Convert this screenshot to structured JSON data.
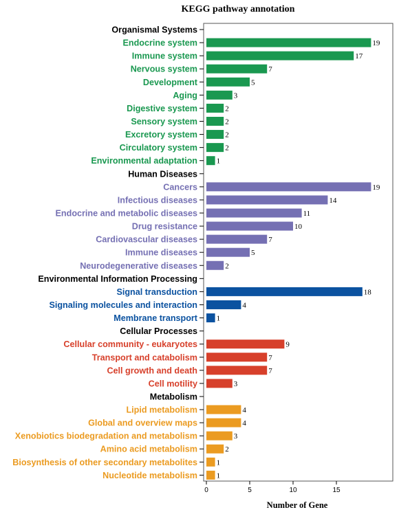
{
  "chart_data": {
    "type": "bar",
    "orientation": "horizontal",
    "title": "KEGG pathway annotation",
    "xlabel": "Number of Gene",
    "ylabel": "",
    "xlim": [
      0,
      21
    ],
    "xticks": [
      0,
      5,
      10,
      15
    ],
    "grid": false,
    "legend": "none",
    "groups": [
      {
        "name": "Organismal Systems",
        "color": "#1a9850",
        "items": [
          {
            "label": "Endocrine system",
            "value": 19
          },
          {
            "label": "Immune system",
            "value": 17
          },
          {
            "label": "Nervous system",
            "value": 7
          },
          {
            "label": "Development",
            "value": 5
          },
          {
            "label": "Aging",
            "value": 3
          },
          {
            "label": "Digestive system",
            "value": 2
          },
          {
            "label": "Sensory system",
            "value": 2
          },
          {
            "label": "Excretory system",
            "value": 2
          },
          {
            "label": "Circulatory system",
            "value": 2
          },
          {
            "label": "Environmental adaptation",
            "value": 1
          }
        ]
      },
      {
        "name": "Human Diseases",
        "color": "#7570b3",
        "items": [
          {
            "label": "Cancers",
            "value": 19
          },
          {
            "label": "Infectious diseases",
            "value": 14
          },
          {
            "label": "Endocrine and metabolic diseases",
            "value": 11
          },
          {
            "label": "Drug resistance",
            "value": 10
          },
          {
            "label": "Cardiovascular diseases",
            "value": 7
          },
          {
            "label": "Immune diseases",
            "value": 5
          },
          {
            "label": "Neurodegenerative diseases",
            "value": 2
          }
        ]
      },
      {
        "name": "Environmental Information Processing",
        "color": "#0b52a0",
        "items": [
          {
            "label": "Signal transduction",
            "value": 18
          },
          {
            "label": "Signaling molecules and interaction",
            "value": 4
          },
          {
            "label": "Membrane transport",
            "value": 1
          }
        ]
      },
      {
        "name": "Cellular Processes",
        "color": "#d7402b",
        "items": [
          {
            "label": "Cellular community - eukaryotes",
            "value": 9
          },
          {
            "label": "Transport and catabolism",
            "value": 7
          },
          {
            "label": "Cell growth and death",
            "value": 7
          },
          {
            "label": "Cell motility",
            "value": 3
          }
        ]
      },
      {
        "name": "Metabolism",
        "color": "#eb9b21",
        "items": [
          {
            "label": "Lipid metabolism",
            "value": 4
          },
          {
            "label": "Global and overview maps",
            "value": 4
          },
          {
            "label": "Xenobiotics biodegradation and metabolism",
            "value": 3
          },
          {
            "label": "Amino acid metabolism",
            "value": 2
          },
          {
            "label": "Biosynthesis of other secondary metabolites",
            "value": 1
          },
          {
            "label": "Nucleotide metabolism",
            "value": 1
          }
        ]
      }
    ]
  }
}
